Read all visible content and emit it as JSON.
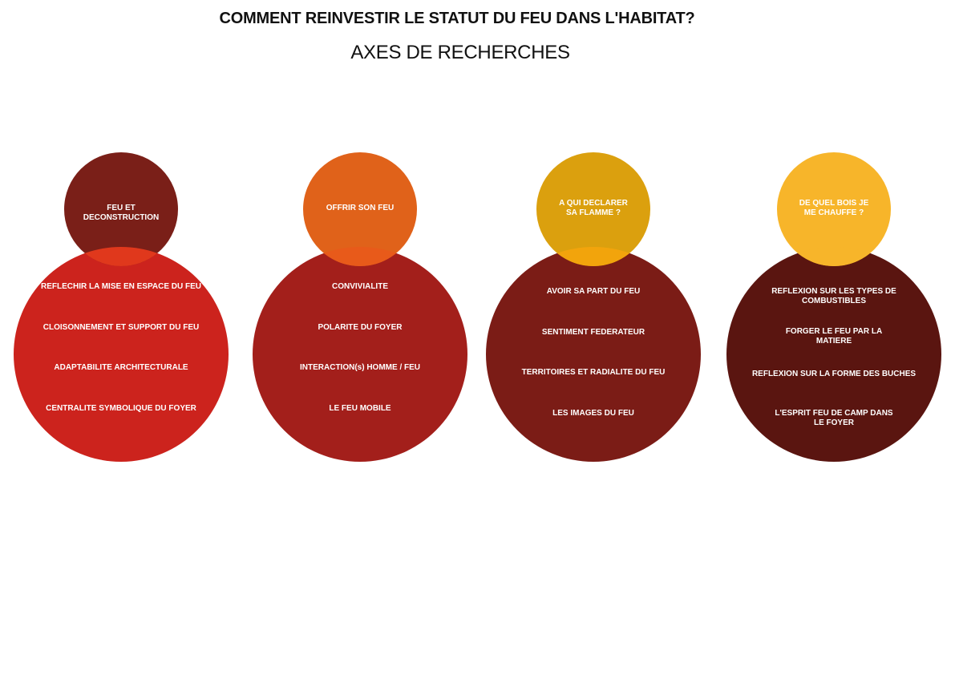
{
  "header": {
    "title": "COMMENT REINVESTIR LE STATUT DU FEU DANS L'HABITAT?",
    "subtitle": "AXES DE RECHERCHES"
  },
  "colors": {
    "background": "#ffffff",
    "text_dark": "#111111",
    "text_light": "#ffffff"
  },
  "axes": [
    {
      "title": "FEU ET DECONSTRUCTION",
      "small_color": "#7a1f18",
      "large_color": "#cc231d",
      "overlap_color": "#e0381c",
      "items": [
        "REFLECHIR LA MISE EN ESPACE DU FEU",
        "CLOISONNEMENT ET SUPPORT DU FEU",
        "ADAPTABILITE ARCHITECTURALE",
        "CENTRALITE SYMBOLIQUE DU FOYER"
      ]
    },
    {
      "title": "OFFRIR SON FEU",
      "small_color": "#e0621a",
      "large_color": "#a31f1b",
      "overlap_color": "#e85a1a",
      "items": [
        "CONVIVIALITE",
        "POLARITE DU FOYER",
        "INTERACTION(s) HOMME  / FEU",
        "LE FEU MOBILE"
      ]
    },
    {
      "title": "A    QUI    DECLARER\nSA FLAMME ?",
      "small_color": "#dba00e",
      "large_color": "#7b1c16",
      "overlap_color": "#f2a40c",
      "items": [
        "AVOIR SA PART DU FEU",
        "SENTIMENT FEDERATEUR",
        "TERRITOIRES ET RADIALITE DU FEU",
        "LES IMAGES DU FEU"
      ]
    },
    {
      "title": "DE   QUEL   BOIS   JE\nME CHAUFFE ?",
      "small_color": "#f7b52a",
      "large_color": "#5a1510",
      "overlap_color": "#f7b52a",
      "items": [
        "REFLEXION  SUR  LES  TYPES  DE\nCOMBUSTIBLES",
        "FORGER  LE  FEU  PAR  LA\nMATIERE",
        "REFLEXION SUR LA FORME DES BUCHES",
        "L'ESPRIT FEU DE CAMP DANS\nLE FOYER"
      ]
    }
  ]
}
